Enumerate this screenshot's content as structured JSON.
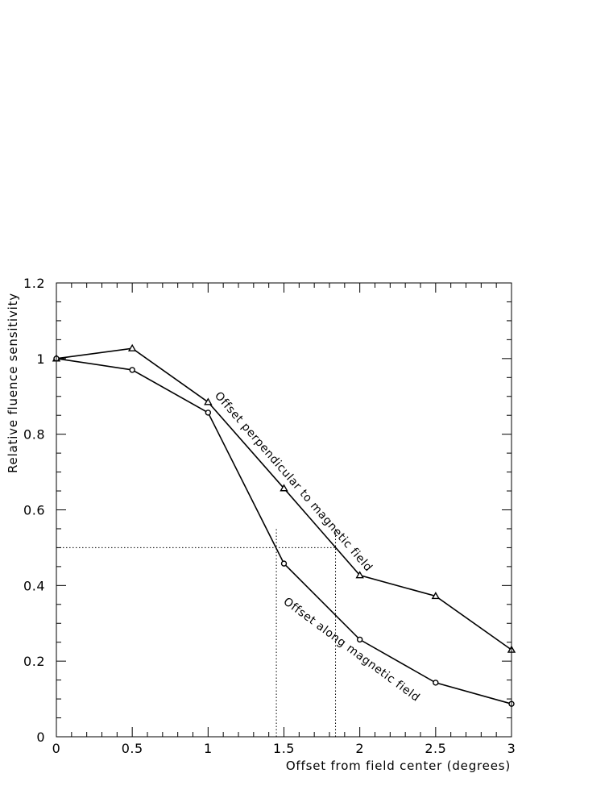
{
  "chart_data": {
    "type": "line",
    "xlabel": "Offset from field center (degrees)",
    "ylabel": "Relative fluence sensitivity",
    "xlim": [
      0,
      3
    ],
    "ylim": [
      0,
      1.2
    ],
    "x_ticks": [
      "0",
      "0.5",
      "1",
      "1.5",
      "2",
      "2.5",
      "3"
    ],
    "y_ticks": [
      "0",
      "0.2",
      "0.4",
      "0.6",
      "0.8",
      "1",
      "1.2"
    ],
    "grid": false,
    "series": [
      {
        "marker": "triangle",
        "x": [
          0,
          0.5,
          1,
          1.5,
          2,
          2.5,
          3
        ],
        "y": [
          1.0,
          1.027,
          0.885,
          0.657,
          0.427,
          0.372,
          0.23
        ]
      },
      {
        "marker": "circle",
        "x": [
          0,
          0.5,
          1,
          1.5,
          2,
          2.5,
          3
        ],
        "y": [
          1.0,
          0.97,
          0.857,
          0.458,
          0.257,
          0.143,
          0.087
        ]
      }
    ],
    "reference_lines": {
      "y": 0.5,
      "x": [
        1.45,
        1.84
      ]
    },
    "annotations": [
      "Offset perpendicular to magnetic field",
      "Offset along magnetic field"
    ]
  }
}
